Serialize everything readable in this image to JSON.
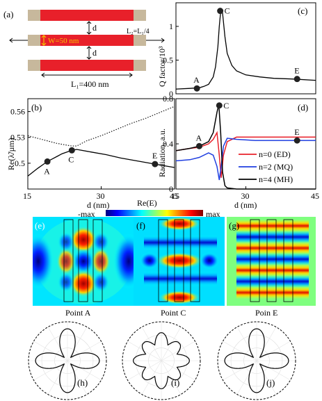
{
  "panel_a": {
    "label": "(a)",
    "width_label": "W=50 nm",
    "length_label": "L₁=400 nm",
    "l2_label": "L₂=L₁/4",
    "d_label": "d",
    "colors": {
      "bar": "#e8202a",
      "end": "#c7b89c",
      "width_text": "#f5c400"
    }
  },
  "chart_data": [
    {
      "panel": "(b)",
      "type": "line",
      "xlabel": "d (nm)",
      "ylabel": "Re(λ̃/µm)",
      "xlim": [
        15,
        45
      ],
      "ylim": [
        0.47,
        0.575
      ],
      "xticks": [
        15,
        30,
        45
      ],
      "yticks": [
        0.5,
        0.53,
        0.56
      ],
      "series": [
        {
          "style": "solid",
          "x": [
            15,
            17,
            19,
            20,
            21,
            22,
            23,
            24,
            25,
            28,
            31,
            34,
            37,
            40,
            43,
            45
          ],
          "y": [
            0.485,
            0.494,
            0.502,
            0.505,
            0.508,
            0.511,
            0.513,
            0.515,
            0.516,
            0.513,
            0.51,
            0.506,
            0.503,
            0.5,
            0.497,
            0.495
          ]
        },
        {
          "style": "dotted",
          "x": [
            15,
            17,
            19,
            21,
            22,
            23,
            24,
            25,
            27,
            30,
            33,
            36,
            39,
            42,
            45
          ],
          "y": [
            0.532,
            0.529,
            0.526,
            0.523,
            0.522,
            0.521,
            0.52,
            0.52,
            0.526,
            0.532,
            0.539,
            0.546,
            0.552,
            0.559,
            0.566
          ]
        }
      ],
      "points": [
        {
          "label": "A",
          "x": 19,
          "y": 0.502
        },
        {
          "label": "C",
          "x": 24,
          "y": 0.515
        },
        {
          "label": "E",
          "x": 41,
          "y": 0.499
        }
      ]
    },
    {
      "panel": "(c)",
      "type": "line",
      "ylabel": "Q factor/10³",
      "xlim": [
        15,
        45
      ],
      "ylim": [
        0,
        1.35
      ],
      "yticks": [
        0,
        0.5,
        1
      ],
      "series": [
        {
          "style": "solid",
          "x": [
            15,
            18,
            20,
            21,
            22,
            23,
            23.5,
            24,
            24.3,
            24.6,
            25,
            25.5,
            26,
            27,
            28,
            30,
            33,
            36,
            40,
            45
          ],
          "y": [
            0.07,
            0.08,
            0.09,
            0.11,
            0.14,
            0.25,
            0.4,
            0.7,
            1.0,
            1.22,
            1.2,
            0.85,
            0.6,
            0.42,
            0.34,
            0.28,
            0.25,
            0.23,
            0.22,
            0.2
          ]
        }
      ],
      "points": [
        {
          "label": "A",
          "x": 19.5,
          "y": 0.08
        },
        {
          "label": "C",
          "x": 24.5,
          "y": 1.23
        },
        {
          "label": "E",
          "x": 41,
          "y": 0.22
        }
      ]
    },
    {
      "panel": "(d)",
      "type": "line",
      "xlabel": "d (nm)",
      "ylabel": "Radiation, a.u.",
      "xlim": [
        15,
        45
      ],
      "ylim": [
        0,
        0.8
      ],
      "xticks": [
        15,
        30,
        45
      ],
      "yticks": [
        0,
        0.4,
        0.8
      ],
      "series": [
        {
          "name": "n=0 (ED)",
          "color": "#e8202a",
          "x": [
            15,
            18,
            20,
            22,
            23,
            23.8,
            24.3,
            24.7,
            25.2,
            26,
            28,
            32,
            36,
            40,
            45
          ],
          "y": [
            0.34,
            0.36,
            0.37,
            0.4,
            0.44,
            0.5,
            0.3,
            0.1,
            0.3,
            0.42,
            0.46,
            0.46,
            0.46,
            0.46,
            0.46
          ]
        },
        {
          "name": "n=2 (MQ)",
          "color": "#1f3ee0",
          "x": [
            15,
            18,
            20,
            22,
            23,
            23.8,
            24.3,
            24.7,
            25.2,
            26,
            28,
            32,
            36,
            40,
            45
          ],
          "y": [
            0.25,
            0.26,
            0.28,
            0.32,
            0.3,
            0.2,
            0.08,
            0.2,
            0.38,
            0.45,
            0.44,
            0.43,
            0.43,
            0.43,
            0.43
          ]
        },
        {
          "name": "n=4 (MH)",
          "color": "#000000",
          "x": [
            15,
            18,
            20,
            22,
            23,
            23.8,
            24.2,
            24.6,
            25,
            25.5,
            26,
            28,
            32,
            36,
            40,
            45
          ],
          "y": [
            0.34,
            0.36,
            0.38,
            0.42,
            0.5,
            0.68,
            0.75,
            0.5,
            0.15,
            0.03,
            0.01,
            0.0,
            0.0,
            0.0,
            0.0,
            0.0
          ]
        }
      ],
      "points": [
        {
          "label": "A",
          "x": 20,
          "y": 0.38
        },
        {
          "label": "C",
          "x": 24.3,
          "y": 0.74
        },
        {
          "label": "E",
          "x": 41,
          "y": 0.43
        }
      ]
    }
  ],
  "colorbar": {
    "title": "Re(E)",
    "min_label": "-max",
    "max_label": "max"
  },
  "field_maps": [
    {
      "label": "(e)",
      "caption": "Point A",
      "mode": "A"
    },
    {
      "label": "(f)",
      "caption": "Point C",
      "mode": "C"
    },
    {
      "label": "(g)",
      "caption": "Poin E",
      "mode": "E"
    }
  ],
  "polar_plots": [
    {
      "label": "(h)",
      "lobes": 4
    },
    {
      "label": "(i)",
      "lobes": 8
    },
    {
      "label": "(j)",
      "lobes": 4
    }
  ]
}
